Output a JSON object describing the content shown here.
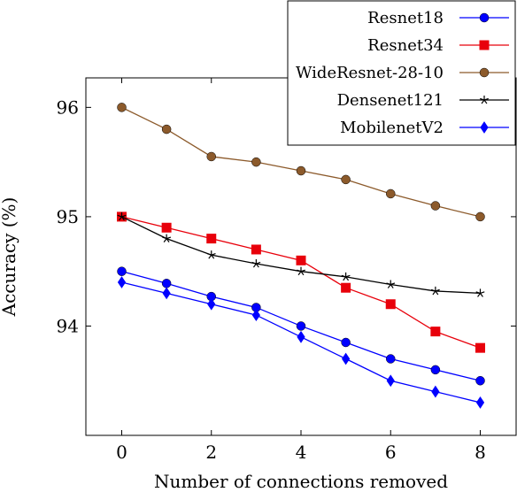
{
  "chart_data": {
    "type": "line",
    "xlabel": "Number of connections removed",
    "ylabel": "Accuracy (%)",
    "xlim": [
      -0.8,
      8.8
    ],
    "ylim": [
      93.0,
      96.27
    ],
    "xticks": [
      "0",
      "2",
      "4",
      "6",
      "8"
    ],
    "yticks": [
      "94",
      "95",
      "96"
    ],
    "grid": false,
    "legend_position": "top-right",
    "x": [
      0,
      1,
      2,
      3,
      4,
      5,
      6,
      7,
      8
    ],
    "series": [
      {
        "name": "Resnet18",
        "color": "#0000ff",
        "marker": "circle",
        "values": [
          94.5,
          94.39,
          94.27,
          94.17,
          94.0,
          93.85,
          93.7,
          93.6,
          93.5
        ]
      },
      {
        "name": "Resnet34",
        "color": "#e8000b",
        "marker": "square",
        "values": [
          95.0,
          94.9,
          94.8,
          94.7,
          94.6,
          94.35,
          94.2,
          93.95,
          93.8
        ]
      },
      {
        "name": "WideResnet-28-10",
        "color": "#8c5a2b",
        "marker": "circle",
        "values": [
          96.0,
          95.8,
          95.55,
          95.5,
          95.42,
          95.34,
          95.21,
          95.1,
          95.0
        ]
      },
      {
        "name": "Densenet121",
        "color": "#000000",
        "marker": "star",
        "values": [
          95.0,
          94.8,
          94.65,
          94.57,
          94.5,
          94.45,
          94.38,
          94.32,
          94.3
        ]
      },
      {
        "name": "MobilenetV2",
        "color": "#0000ff",
        "marker": "diamond",
        "values": [
          94.4,
          94.3,
          94.2,
          94.1,
          93.9,
          93.7,
          93.5,
          93.4,
          93.3
        ]
      }
    ]
  }
}
